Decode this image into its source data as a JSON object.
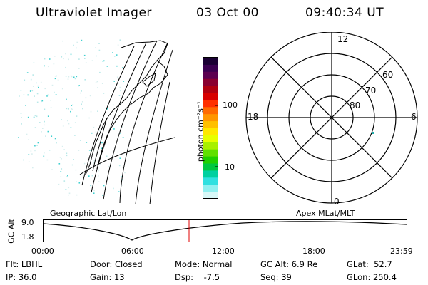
{
  "header": {
    "title": "Ultraviolet Imager",
    "date": "03 Oct 00",
    "time": "09:40:34 UT"
  },
  "colorbar": {
    "label": "photon cm⁻²s⁻¹",
    "ticks": [
      "100",
      "10"
    ],
    "colors": [
      "#1a0033",
      "#3a0050",
      "#5c0050",
      "#8a0030",
      "#b00010",
      "#d80000",
      "#ff3000",
      "#ff6a00",
      "#ff9600",
      "#ffc000",
      "#ffe800",
      "#e8ff00",
      "#a8f000",
      "#60e000",
      "#20d000",
      "#00c840",
      "#00d0a0",
      "#30e0e0",
      "#90f0f0",
      "#d8f8f8"
    ]
  },
  "polar": {
    "lat_labels": [
      "60",
      "70",
      "80"
    ],
    "mlt_labels": {
      "top": "12",
      "bottom": "0",
      "left": "18",
      "right": "6"
    }
  },
  "map_label_left": "Geographic Lat/Lon",
  "map_label_right": "Apex MLat/MLT",
  "altitude_plot": {
    "ylabel": "GC Alt",
    "yticks": [
      "9.0",
      "1.8"
    ],
    "xticks": [
      "00:00",
      "06:00",
      "12:00",
      "18:00",
      "23:59"
    ],
    "marker_color": "#e00000"
  },
  "info": {
    "row1": [
      {
        "key": "Flt:",
        "val": "LBHL"
      },
      {
        "key": "Door:",
        "val": "Closed"
      },
      {
        "key": "Mode:",
        "val": "Normal"
      },
      {
        "key": "GC Alt:",
        "val": "6.9 Re"
      },
      {
        "key": "GLat:",
        "val": "52.7"
      }
    ],
    "row2": [
      {
        "key": "IP:",
        "val": "36.0"
      },
      {
        "key": "Gain:",
        "val": "13"
      },
      {
        "key": "Dsp:",
        "val": "-7.5"
      },
      {
        "key": "Seq:",
        "val": "39"
      },
      {
        "key": "GLon:",
        "val": "250.4"
      }
    ]
  }
}
